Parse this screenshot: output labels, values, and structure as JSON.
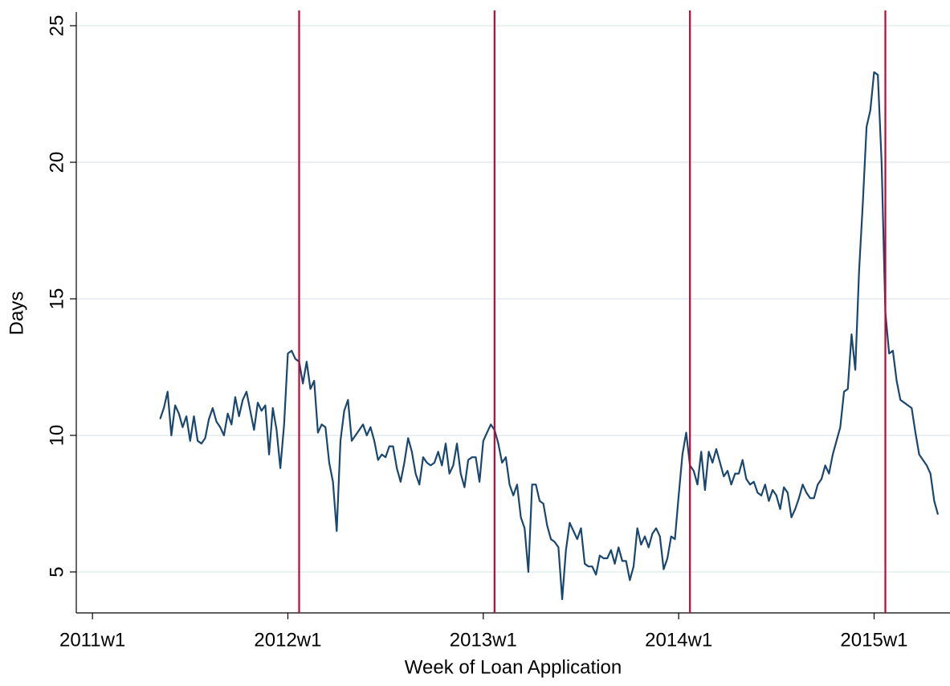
{
  "chart_data": {
    "type": "line",
    "x_label": "Week of Loan Application",
    "y_label": "Days",
    "xlim": [
      2647.7,
      2880.2
    ],
    "ylim": [
      3.5,
      25.5
    ],
    "xticks": [
      {
        "value": 2652,
        "label": "2011w1"
      },
      {
        "value": 2704,
        "label": "2012w1"
      },
      {
        "value": 2756,
        "label": "2013w1"
      },
      {
        "value": 2808,
        "label": "2014w1"
      },
      {
        "value": 2860,
        "label": "2015w1"
      }
    ],
    "yticks": [
      5,
      10,
      15,
      20,
      25
    ],
    "grid": true,
    "vlines": [
      2707,
      2759,
      2811,
      2863
    ],
    "vline_color": "#c10534",
    "x": [
      2670,
      2671,
      2672,
      2673,
      2674,
      2675,
      2676,
      2677,
      2678,
      2679,
      2680,
      2681,
      2682,
      2683,
      2684,
      2685,
      2686,
      2687,
      2688,
      2689,
      2690,
      2691,
      2692,
      2693,
      2694,
      2695,
      2696,
      2697,
      2698,
      2699,
      2700,
      2701,
      2702,
      2703,
      2704,
      2705,
      2706,
      2707,
      2708,
      2709,
      2710,
      2711,
      2712,
      2713,
      2714,
      2715,
      2716,
      2717,
      2718,
      2719,
      2720,
      2721,
      2722,
      2723,
      2724,
      2725,
      2726,
      2727,
      2728,
      2729,
      2730,
      2731,
      2732,
      2733,
      2734,
      2735,
      2736,
      2737,
      2738,
      2739,
      2740,
      2741,
      2742,
      2743,
      2744,
      2745,
      2746,
      2747,
      2748,
      2749,
      2750,
      2751,
      2752,
      2753,
      2754,
      2755,
      2756,
      2757,
      2758,
      2759,
      2760,
      2761,
      2762,
      2763,
      2764,
      2765,
      2766,
      2767,
      2768,
      2769,
      2770,
      2771,
      2772,
      2773,
      2774,
      2775,
      2776,
      2777,
      2778,
      2779,
      2780,
      2781,
      2782,
      2783,
      2784,
      2785,
      2786,
      2787,
      2788,
      2789,
      2790,
      2791,
      2792,
      2793,
      2794,
      2795,
      2796,
      2797,
      2798,
      2799,
      2800,
      2801,
      2802,
      2803,
      2804,
      2805,
      2806,
      2807,
      2808,
      2809,
      2810,
      2811,
      2812,
      2813,
      2814,
      2815,
      2816,
      2817,
      2818,
      2819,
      2820,
      2821,
      2822,
      2823,
      2824,
      2825,
      2826,
      2827,
      2828,
      2829,
      2830,
      2831,
      2832,
      2833,
      2834,
      2835,
      2836,
      2837,
      2838,
      2839,
      2840,
      2841,
      2842,
      2843,
      2844,
      2845,
      2846,
      2847,
      2848,
      2849,
      2850,
      2851,
      2852,
      2853,
      2854,
      2855,
      2856,
      2857,
      2858,
      2859,
      2860,
      2861,
      2862,
      2863,
      2864,
      2865,
      2866,
      2867,
      2868,
      2869,
      2870,
      2871,
      2872,
      2873,
      2874,
      2875,
      2876,
      2877
    ],
    "series": [
      {
        "color": "#1a476f",
        "values": [
          10.6,
          11.0,
          11.6,
          10.0,
          11.1,
          10.8,
          10.3,
          10.7,
          9.8,
          10.7,
          9.8,
          9.7,
          9.9,
          10.6,
          11.0,
          10.5,
          10.3,
          10.0,
          10.8,
          10.4,
          11.4,
          10.7,
          11.3,
          11.6,
          10.9,
          10.2,
          11.2,
          10.9,
          11.1,
          9.3,
          11.0,
          10.2,
          8.8,
          10.4,
          13.0,
          13.1,
          12.8,
          12.7,
          11.9,
          12.7,
          11.7,
          12.0,
          10.1,
          10.4,
          10.3,
          9.0,
          8.3,
          6.5,
          9.8,
          10.9,
          11.3,
          9.8,
          10.0,
          10.2,
          10.4,
          10.0,
          10.3,
          9.8,
          9.1,
          9.3,
          9.2,
          9.6,
          9.6,
          8.8,
          8.3,
          9.0,
          9.9,
          9.4,
          8.6,
          8.2,
          9.2,
          9.0,
          8.9,
          9.0,
          9.4,
          8.9,
          9.7,
          8.6,
          8.9,
          9.7,
          8.6,
          8.1,
          9.1,
          9.2,
          9.2,
          8.3,
          9.8,
          10.1,
          10.4,
          10.2,
          9.7,
          9.0,
          9.2,
          8.2,
          7.8,
          8.2,
          7.0,
          6.6,
          5.0,
          8.2,
          8.2,
          7.6,
          7.5,
          6.7,
          6.2,
          6.1,
          5.9,
          4.0,
          5.8,
          6.8,
          6.5,
          6.2,
          6.6,
          5.3,
          5.2,
          5.2,
          4.9,
          5.6,
          5.5,
          5.5,
          5.8,
          5.3,
          5.9,
          5.4,
          5.4,
          4.7,
          5.2,
          6.6,
          6.0,
          6.3,
          5.9,
          6.4,
          6.6,
          6.3,
          5.1,
          5.5,
          6.3,
          6.2,
          7.8,
          9.3,
          10.1,
          8.9,
          8.7,
          8.2,
          9.4,
          8.0,
          9.4,
          9.0,
          9.5,
          9.0,
          8.5,
          8.7,
          8.2,
          8.6,
          8.6,
          9.1,
          8.4,
          8.2,
          8.3,
          7.9,
          7.8,
          8.2,
          7.6,
          8.0,
          7.8,
          7.3,
          8.1,
          7.9,
          7.0,
          7.3,
          7.7,
          8.2,
          7.9,
          7.7,
          7.7,
          8.2,
          8.4,
          8.9,
          8.6,
          9.3,
          9.8,
          10.3,
          11.6,
          11.7,
          13.7,
          12.4,
          16.0,
          18.5,
          21.3,
          21.9,
          23.3,
          23.2,
          20.0,
          14.5,
          13.0,
          13.1,
          12.0,
          11.3,
          11.2,
          11.1,
          11.0,
          10.1,
          9.3,
          9.1,
          8.9,
          8.6,
          7.6,
          7.1
        ]
      }
    ]
  }
}
